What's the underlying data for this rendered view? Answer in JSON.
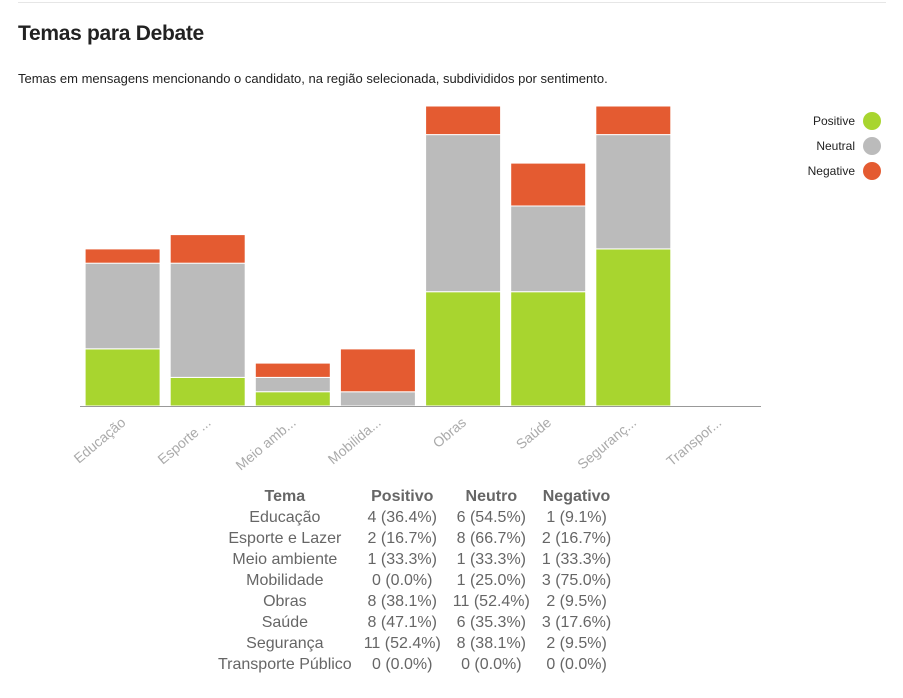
{
  "title": "Temas para Debate",
  "subtitle": "Temas em mensagens mencionando o candidato, na região selecionada, subdivididos por sentimento.",
  "colors": {
    "positive": "#a8d52f",
    "neutral": "#bbbbbb",
    "negative": "#e45b31",
    "axis": "#999999",
    "tick": "#aaaaaa"
  },
  "legend": [
    {
      "label": "Positive",
      "color": "#a8d52f"
    },
    {
      "label": "Neutral",
      "color": "#bbbbbb"
    },
    {
      "label": "Negative",
      "color": "#e45b31"
    }
  ],
  "chart_data": {
    "type": "bar",
    "stacked": true,
    "title": "",
    "xlabel": "",
    "ylabel": "",
    "categories": [
      "Educação",
      "Esporte ...",
      "Meio amb...",
      "Mobilida...",
      "Obras",
      "Saúde",
      "Seguranç...",
      "Transpor..."
    ],
    "series": [
      {
        "name": "Positive",
        "values": [
          4,
          2,
          1,
          0,
          8,
          8,
          11,
          0
        ]
      },
      {
        "name": "Neutral",
        "values": [
          6,
          8,
          1,
          1,
          11,
          6,
          8,
          0
        ]
      },
      {
        "name": "Negative",
        "values": [
          1,
          2,
          1,
          3,
          2,
          3,
          2,
          0
        ]
      }
    ],
    "ylim": [
      0,
      21
    ],
    "grid": false,
    "legend_position": "top-right"
  },
  "table": {
    "headers": [
      "Tema",
      "Positivo",
      "Neutro",
      "Negativo"
    ],
    "rows": [
      [
        "Educação",
        "4 (36.4%)",
        "6 (54.5%)",
        "1 (9.1%)"
      ],
      [
        "Esporte e Lazer",
        "2 (16.7%)",
        "8 (66.7%)",
        "2 (16.7%)"
      ],
      [
        "Meio ambiente",
        "1 (33.3%)",
        "1 (33.3%)",
        "1 (33.3%)"
      ],
      [
        "Mobilidade",
        "0 (0.0%)",
        "1 (25.0%)",
        "3 (75.0%)"
      ],
      [
        "Obras",
        "8 (38.1%)",
        "11 (52.4%)",
        "2 (9.5%)"
      ],
      [
        "Saúde",
        "8 (47.1%)",
        "6 (35.3%)",
        "3 (17.6%)"
      ],
      [
        "Segurança",
        "11 (52.4%)",
        "8 (38.1%)",
        "2 (9.5%)"
      ],
      [
        "Transporte Público",
        "0 (0.0%)",
        "0 (0.0%)",
        "0 (0.0%)"
      ]
    ]
  }
}
